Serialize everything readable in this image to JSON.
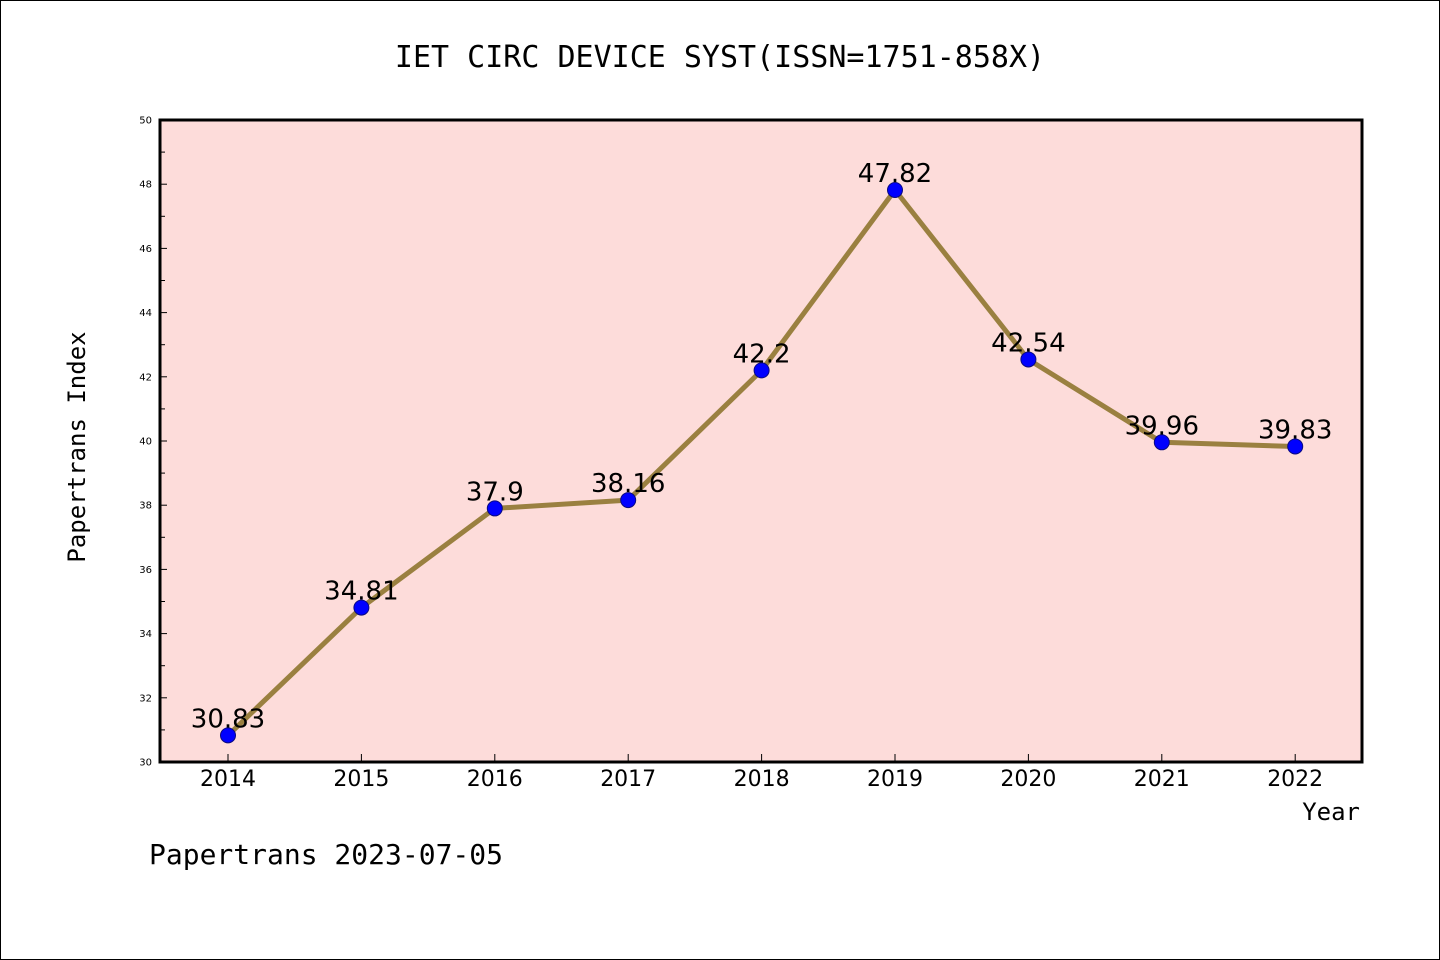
{
  "colors": {
    "plot_background": "#FDDCDA",
    "line": "#9A8040",
    "marker": "#0000FF",
    "marker_edge": "#0A0A80"
  },
  "footer": "Papertrans 2023-07-05",
  "chart_data": {
    "type": "line",
    "title": "IET CIRC DEVICE SYST(ISSN=1751-858X)",
    "xlabel": "Year",
    "ylabel": "Papertrans Index",
    "categories": [
      "2014",
      "2015",
      "2016",
      "2017",
      "2018",
      "2019",
      "2020",
      "2021",
      "2022"
    ],
    "values": [
      30.83,
      34.81,
      37.9,
      38.16,
      42.2,
      47.82,
      42.54,
      39.96,
      39.83
    ],
    "data_labels": [
      "30.83",
      "34.81",
      "37.9",
      "38.16",
      "42.2",
      "47.82",
      "42.54",
      "39.96",
      "39.83"
    ],
    "yticks": [
      "30",
      "32",
      "34",
      "36",
      "38",
      "40",
      "42",
      "44",
      "46",
      "48",
      "50"
    ],
    "ylim": [
      30,
      50
    ],
    "grid": false,
    "legend": "none"
  }
}
